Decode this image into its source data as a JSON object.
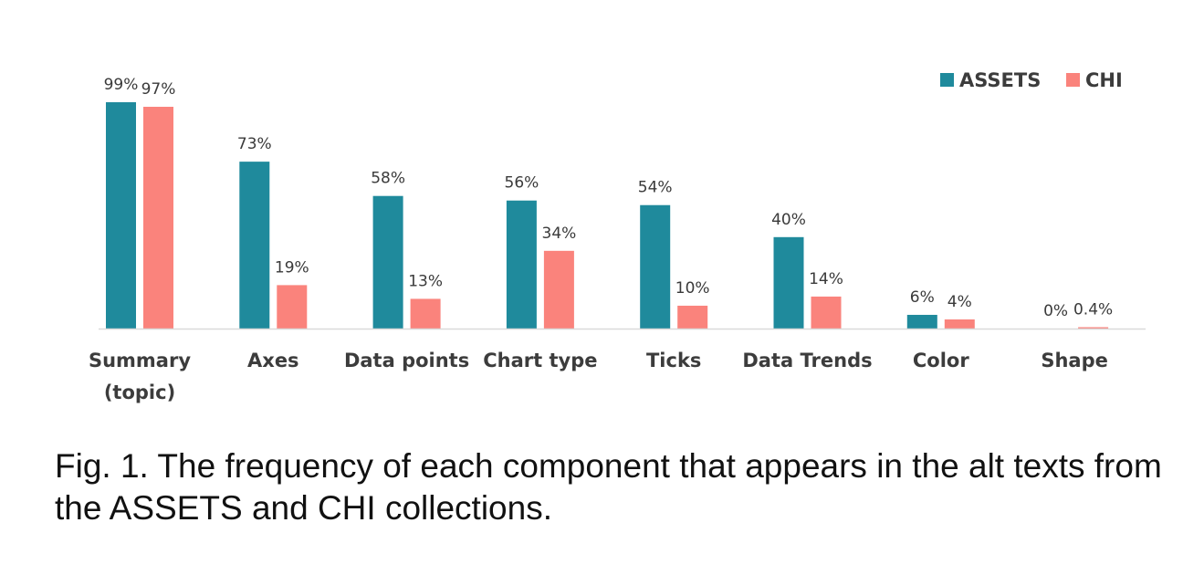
{
  "chart_data": {
    "type": "bar",
    "categories": [
      "Summary (topic)",
      "Axes",
      "Data points",
      "Chart type",
      "Ticks",
      "Data Trends",
      "Color",
      "Shape"
    ],
    "category_lines": [
      [
        "Summary",
        "(topic)"
      ],
      [
        "Axes"
      ],
      [
        "Data points"
      ],
      [
        "Chart type"
      ],
      [
        "Ticks"
      ],
      [
        "Data Trends"
      ],
      [
        "Color"
      ],
      [
        "Shape"
      ]
    ],
    "series": [
      {
        "name": "ASSETS",
        "color": "#1f8a9c",
        "values": [
          99,
          73,
          58,
          56,
          54,
          40,
          6,
          0
        ],
        "labels": [
          "99%",
          "73%",
          "58%",
          "56%",
          "54%",
          "40%",
          "6%",
          "0%"
        ]
      },
      {
        "name": "CHI",
        "color": "#fa837c",
        "values": [
          97,
          19,
          13,
          34,
          10,
          14,
          4,
          0.4
        ],
        "labels": [
          "97%",
          "19%",
          "13%",
          "34%",
          "10%",
          "14%",
          "4%",
          "0.4%"
        ]
      }
    ],
    "ylim": [
      0,
      100
    ],
    "grid": false,
    "legend_position": "top-right",
    "baseline_color": "#d9d9d9"
  },
  "caption": "Fig. 1.  The frequency of each component that appears in the alt texts from the ASSETS and CHI collections."
}
